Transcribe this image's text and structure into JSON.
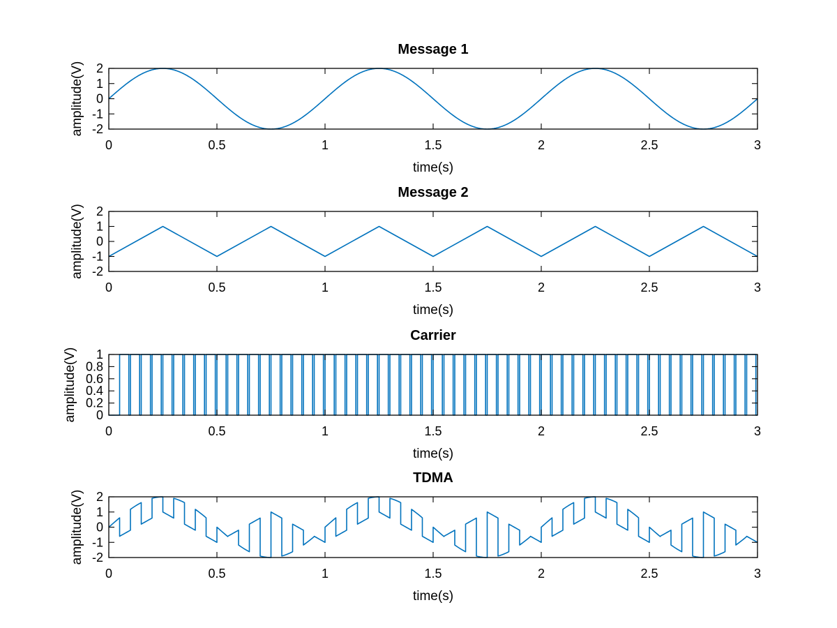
{
  "chart_data": [
    {
      "type": "line",
      "title": "Message 1",
      "xlabel": "time(s)",
      "ylabel": "amplitude(V)",
      "xlim": [
        0,
        3
      ],
      "ylim": [
        -2,
        2
      ],
      "xticks": [
        0,
        0.5,
        1,
        1.5,
        2,
        2.5,
        3
      ],
      "xtick_labels": [
        "0",
        "0.5",
        "1",
        "1.5",
        "2",
        "2.5",
        "3"
      ],
      "yticks": [
        -2,
        -1,
        0,
        1,
        2
      ],
      "ytick_labels": [
        "-2",
        "-1",
        "0",
        "1",
        "2"
      ],
      "grid": false,
      "series": [
        {
          "color": "#0072bd",
          "x": [
            0,
            0.125,
            0.25,
            0.375,
            0.5,
            0.625,
            0.75,
            0.875,
            1,
            1.125,
            1.25,
            1.375,
            1.5,
            1.625,
            1.75,
            1.875,
            2,
            2.125,
            2.25,
            2.375,
            2.5,
            2.625,
            2.75,
            2.875,
            3
          ],
          "y": [
            0,
            1.41,
            2,
            1.41,
            0,
            -1.41,
            -2,
            -1.41,
            0,
            1.41,
            2,
            1.41,
            0,
            -1.41,
            -2,
            -1.41,
            0,
            1.41,
            2,
            1.41,
            0,
            -1.41,
            -2,
            -1.41,
            0
          ]
        }
      ]
    },
    {
      "type": "line",
      "title": "Message 2",
      "xlabel": "time(s)",
      "ylabel": "amplitude(V)",
      "xlim": [
        0,
        3
      ],
      "ylim": [
        -2,
        2
      ],
      "xticks": [
        0,
        0.5,
        1,
        1.5,
        2,
        2.5,
        3
      ],
      "xtick_labels": [
        "0",
        "0.5",
        "1",
        "1.5",
        "2",
        "2.5",
        "3"
      ],
      "yticks": [
        -2,
        -1,
        0,
        1,
        2
      ],
      "ytick_labels": [
        "-2",
        "-1",
        "0",
        "1",
        "2"
      ],
      "grid": false,
      "series": [
        {
          "color": "#0072bd",
          "x": [
            0,
            0.25,
            0.5,
            0.75,
            1,
            1.25,
            1.5,
            1.75,
            2,
            2.25,
            2.5,
            2.75,
            3
          ],
          "y": [
            -1,
            1,
            -1,
            1,
            -1,
            1,
            -1,
            1,
            -1,
            1,
            -1,
            1,
            -1
          ]
        }
      ]
    },
    {
      "type": "line",
      "title": "Carrier",
      "xlabel": "time(s)",
      "ylabel": "amplitude(V)",
      "xlim": [
        0,
        3
      ],
      "ylim": [
        0,
        1
      ],
      "xticks": [
        0,
        0.5,
        1,
        1.5,
        2,
        2.5,
        3
      ],
      "xtick_labels": [
        "0",
        "0.5",
        "1",
        "1.5",
        "2",
        "2.5",
        "3"
      ],
      "yticks": [
        0,
        0.2,
        0.4,
        0.6,
        0.8,
        1
      ],
      "ytick_labels": [
        "0",
        "0.2",
        "0.4",
        "0.6",
        "0.8",
        "1"
      ],
      "grid": false,
      "pulse_train": {
        "period": 0.05,
        "high_time": 0.0425,
        "high": 1,
        "low": 0,
        "start": 0.05,
        "end": 3
      },
      "series": [
        {
          "color": "#0072bd"
        }
      ]
    },
    {
      "type": "line",
      "title": "TDMA",
      "xlabel": "time(s)",
      "ylabel": "amplitude(V)",
      "xlim": [
        0,
        3
      ],
      "ylim": [
        -2,
        2
      ],
      "xticks": [
        0,
        0.5,
        1,
        1.5,
        2,
        2.5,
        3
      ],
      "xtick_labels": [
        "0",
        "0.5",
        "1",
        "1.5",
        "2",
        "2.5",
        "3"
      ],
      "yticks": [
        -2,
        -1,
        0,
        1,
        2
      ],
      "ytick_labels": [
        "-2",
        "-1",
        "0",
        "1",
        "2"
      ],
      "grid": false,
      "slot_period": 0.05,
      "slot_order": [
        "Message 1",
        "Message 2"
      ],
      "series": [
        {
          "color": "#0072bd"
        }
      ]
    }
  ]
}
